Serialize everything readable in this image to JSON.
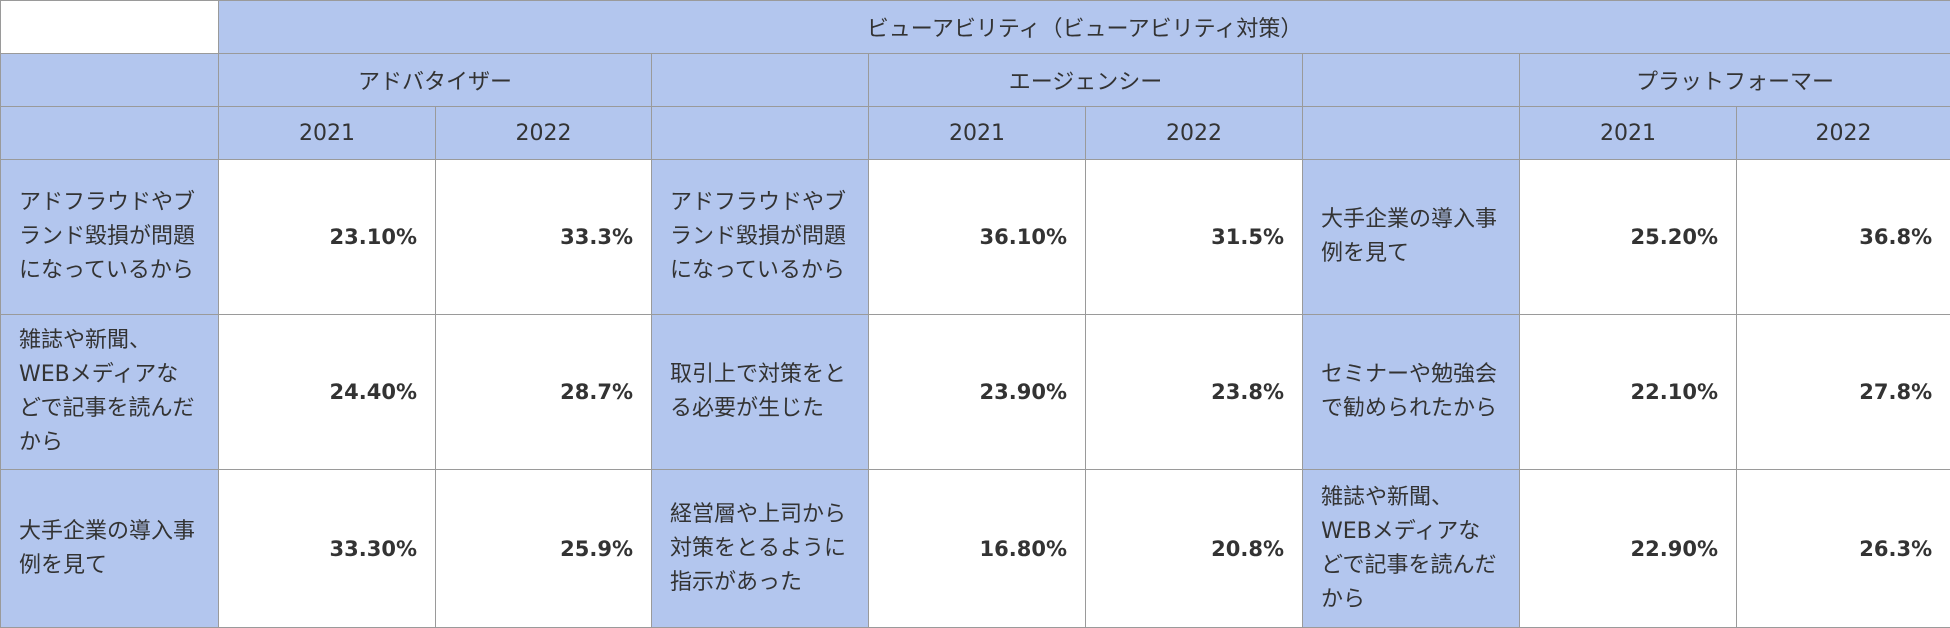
{
  "table": {
    "title": "ビューアビリティ（ビューアビリティ対策）",
    "groups": [
      {
        "name": "アドバタイザー",
        "years": [
          "2021",
          "2022"
        ],
        "rows": [
          {
            "label": "アドフラウドやブランド毀損が問題になっているから",
            "v2021": "23.10%",
            "v2022": "33.3%"
          },
          {
            "label": "雑誌や新聞、WEBメディアなどで記事を読んだから",
            "v2021": "24.40%",
            "v2022": "28.7%"
          },
          {
            "label": "大手企業の導入事例を見て",
            "v2021": "33.30%",
            "v2022": "25.9%"
          }
        ]
      },
      {
        "name": "エージェンシー",
        "years": [
          "2021",
          "2022"
        ],
        "rows": [
          {
            "label": "アドフラウドやブランド毀損が問題になっているから",
            "v2021": "36.10%",
            "v2022": "31.5%"
          },
          {
            "label": "取引上で対策をとる必要が生じた",
            "v2021": "23.90%",
            "v2022": "23.8%"
          },
          {
            "label": "経営層や上司から対策をとるように指示があった",
            "v2021": "16.80%",
            "v2022": "20.8%"
          }
        ]
      },
      {
        "name": "プラットフォーマー",
        "years": [
          "2021",
          "2022"
        ],
        "rows": [
          {
            "label": "大手企業の導入事例を見て",
            "v2021": "25.20%",
            "v2022": "36.8%"
          },
          {
            "label": "セミナーや勉強会で勧められたから",
            "v2021": "22.10%",
            "v2022": "27.8%"
          },
          {
            "label": "雑誌や新聞、WEBメディアなどで記事を読んだから",
            "v2021": "22.90%",
            "v2022": "26.3%"
          }
        ]
      }
    ]
  },
  "colors": {
    "header_fill": "#b3c6ee",
    "border": "#9a9a9a",
    "text": "#333333"
  }
}
